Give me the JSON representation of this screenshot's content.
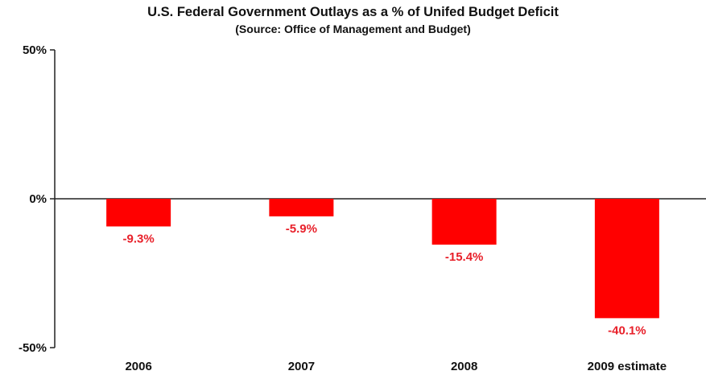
{
  "chart_data": {
    "type": "bar",
    "title": "U.S. Federal Government Outlays as a % of Unifed Budget Deficit",
    "subtitle": "(Source: Office of Management and Budget)",
    "categories": [
      "2006",
      "2007",
      "2008",
      "2009 estimate"
    ],
    "values": [
      -9.3,
      -5.9,
      -15.4,
      -40.1
    ],
    "data_labels": [
      "-9.3%",
      "-5.9%",
      "-15.4%",
      "-40.1%"
    ],
    "ylim": [
      -50,
      50
    ],
    "yticks": [
      50,
      0,
      -50
    ],
    "ytick_labels": [
      "50%",
      "0%",
      "-50%"
    ],
    "xlabel": "",
    "ylabel": "",
    "grid": false,
    "legend": "none",
    "bar_color": "#ff0000",
    "label_color": "#e8202a"
  }
}
